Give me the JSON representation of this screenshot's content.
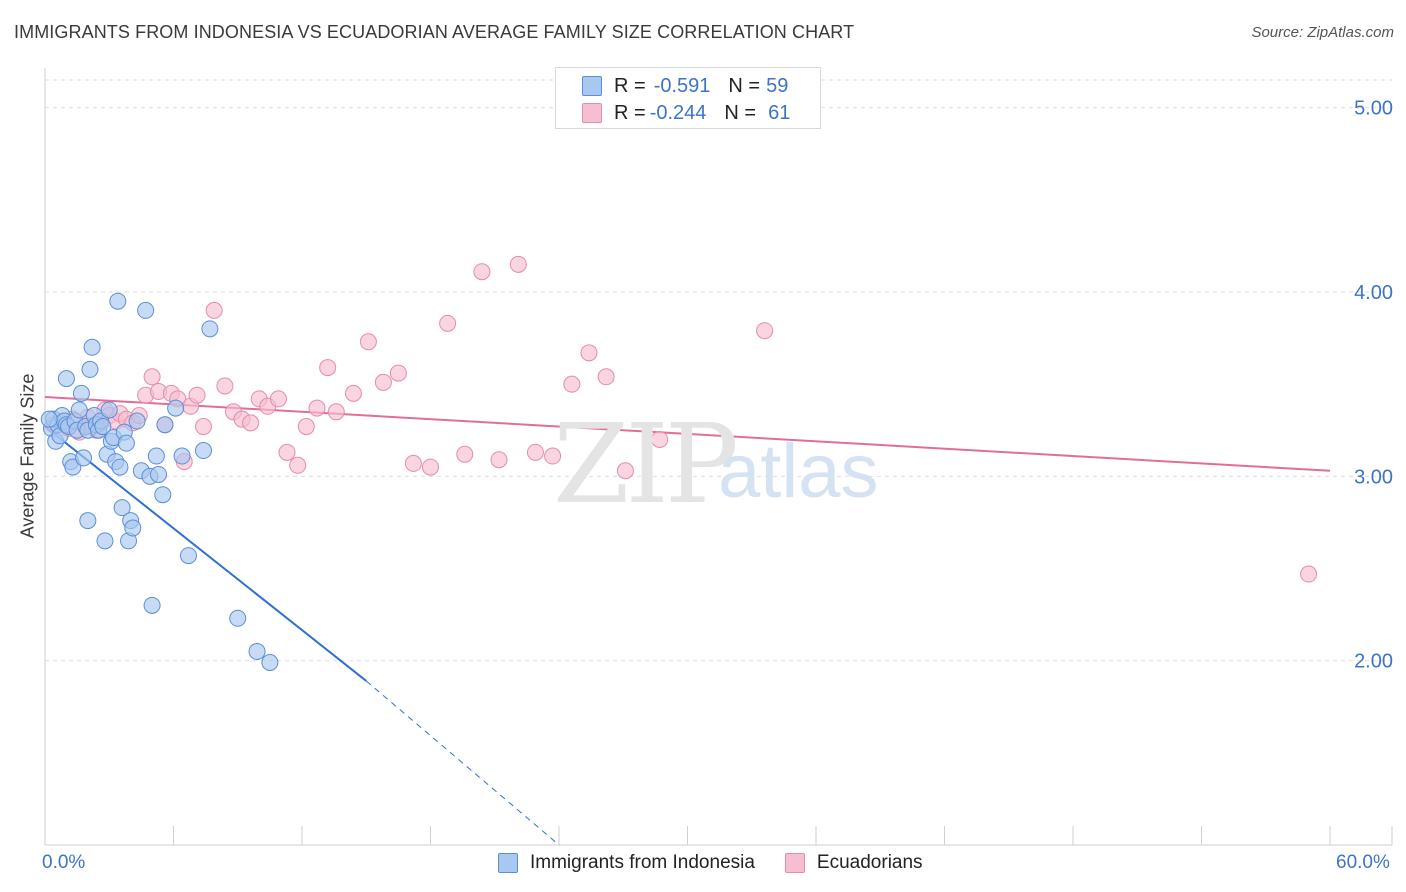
{
  "title": "IMMIGRANTS FROM INDONESIA VS ECUADORIAN AVERAGE FAMILY SIZE CORRELATION CHART",
  "source": "Source: ZipAtlas.com",
  "watermark": {
    "zip": "ZIP",
    "atlas": "atlas"
  },
  "legend": {
    "series1": {
      "r_label": "R = ",
      "r_value": "-0.591",
      "n_label": "N = ",
      "n_value": "59"
    },
    "series2": {
      "r_label": "R = ",
      "r_value": "-0.244",
      "n_label": "N = ",
      "n_value": "61"
    }
  },
  "bottom_legend": {
    "series1": "Immigrants from Indonesia",
    "series2": "Ecuadorians"
  },
  "colors": {
    "blue_fill": "#a9c8f0",
    "blue_stroke": "#5b8fd6",
    "blue_line": "#2f6fd1",
    "pink_fill": "#f6bfd1",
    "pink_stroke": "#e88aaa",
    "pink_line": "#e46d97",
    "grid": "#dedede",
    "tick_text": "#3d74c6"
  },
  "chart_data": {
    "type": "scatter",
    "title": "IMMIGRANTS FROM INDONESIA VS ECUADORIAN AVERAGE FAMILY SIZE CORRELATION CHART",
    "xlabel": "",
    "ylabel": "Average Family Size",
    "xlim": [
      0,
      60
    ],
    "ylim": [
      1.0,
      5.15
    ],
    "x_tick_labels": [
      "0.0%",
      "60.0%"
    ],
    "y_ticks": [
      2.0,
      3.0,
      4.0,
      5.0
    ],
    "y_tick_labels": [
      "2.00",
      "3.00",
      "4.00",
      "5.00"
    ],
    "series": [
      {
        "name": "Immigrants from Indonesia",
        "points": [
          [
            0.3,
            3.26
          ],
          [
            0.4,
            3.31
          ],
          [
            0.5,
            3.19
          ],
          [
            0.6,
            3.28
          ],
          [
            0.7,
            3.22
          ],
          [
            0.8,
            3.33
          ],
          [
            0.9,
            3.3
          ],
          [
            1.0,
            3.53
          ],
          [
            1.0,
            3.28
          ],
          [
            1.1,
            3.27
          ],
          [
            1.2,
            3.08
          ],
          [
            1.3,
            3.05
          ],
          [
            1.4,
            3.3
          ],
          [
            1.5,
            3.25
          ],
          [
            1.6,
            3.36
          ],
          [
            1.7,
            3.45
          ],
          [
            1.8,
            3.1
          ],
          [
            1.9,
            3.27
          ],
          [
            2.0,
            3.25
          ],
          [
            2.0,
            2.76
          ],
          [
            2.1,
            3.58
          ],
          [
            2.2,
            3.7
          ],
          [
            2.3,
            3.33
          ],
          [
            2.4,
            3.28
          ],
          [
            2.5,
            3.25
          ],
          [
            2.6,
            3.3
          ],
          [
            2.7,
            3.27
          ],
          [
            2.8,
            2.65
          ],
          [
            2.9,
            3.12
          ],
          [
            3.0,
            3.36
          ],
          [
            3.1,
            3.19
          ],
          [
            3.2,
            3.21
          ],
          [
            3.3,
            3.08
          ],
          [
            3.4,
            3.95
          ],
          [
            3.5,
            3.05
          ],
          [
            3.6,
            2.83
          ],
          [
            3.7,
            3.24
          ],
          [
            3.8,
            3.18
          ],
          [
            3.9,
            2.65
          ],
          [
            4.0,
            2.76
          ],
          [
            4.1,
            2.72
          ],
          [
            4.3,
            3.3
          ],
          [
            4.5,
            3.03
          ],
          [
            4.7,
            3.9
          ],
          [
            4.9,
            3.0
          ],
          [
            5.0,
            2.3
          ],
          [
            5.2,
            3.11
          ],
          [
            5.3,
            3.01
          ],
          [
            5.5,
            2.9
          ],
          [
            5.6,
            3.28
          ],
          [
            6.1,
            3.37
          ],
          [
            6.4,
            3.11
          ],
          [
            6.7,
            2.57
          ],
          [
            7.4,
            3.14
          ],
          [
            7.7,
            3.8
          ],
          [
            9.0,
            2.23
          ],
          [
            9.9,
            2.05
          ],
          [
            10.5,
            1.99
          ],
          [
            0.2,
            3.31
          ]
        ],
        "trend": {
          "x0": 0,
          "y0": 3.27,
          "x1": 15,
          "y1": 1.89,
          "dashed_to_x": 24,
          "dashed_to_y": 1.0
        }
      },
      {
        "name": "Ecuadorians",
        "points": [
          [
            0.4,
            3.28
          ],
          [
            0.8,
            3.29
          ],
          [
            1.1,
            3.26
          ],
          [
            1.3,
            3.31
          ],
          [
            1.6,
            3.24
          ],
          [
            1.9,
            3.28
          ],
          [
            2.0,
            3.32
          ],
          [
            2.2,
            3.27
          ],
          [
            2.4,
            3.25
          ],
          [
            2.6,
            3.29
          ],
          [
            2.8,
            3.36
          ],
          [
            3.0,
            3.33
          ],
          [
            3.3,
            3.3
          ],
          [
            3.5,
            3.34
          ],
          [
            3.8,
            3.31
          ],
          [
            4.1,
            3.29
          ],
          [
            4.4,
            3.33
          ],
          [
            4.7,
            3.44
          ],
          [
            5.0,
            3.54
          ],
          [
            5.3,
            3.46
          ],
          [
            5.6,
            3.28
          ],
          [
            5.9,
            3.45
          ],
          [
            6.2,
            3.42
          ],
          [
            6.5,
            3.08
          ],
          [
            6.8,
            3.38
          ],
          [
            7.1,
            3.44
          ],
          [
            7.4,
            3.27
          ],
          [
            7.9,
            3.9
          ],
          [
            8.4,
            3.49
          ],
          [
            8.8,
            3.35
          ],
          [
            9.2,
            3.31
          ],
          [
            9.6,
            3.29
          ],
          [
            10.0,
            3.42
          ],
          [
            10.4,
            3.38
          ],
          [
            10.9,
            3.42
          ],
          [
            11.3,
            3.13
          ],
          [
            11.8,
            3.06
          ],
          [
            12.2,
            3.27
          ],
          [
            12.7,
            3.37
          ],
          [
            13.2,
            3.59
          ],
          [
            13.6,
            3.35
          ],
          [
            14.4,
            3.45
          ],
          [
            15.1,
            3.73
          ],
          [
            15.8,
            3.51
          ],
          [
            16.5,
            3.56
          ],
          [
            17.2,
            3.07
          ],
          [
            18.0,
            3.05
          ],
          [
            18.8,
            3.83
          ],
          [
            19.6,
            3.12
          ],
          [
            20.4,
            4.11
          ],
          [
            21.2,
            3.09
          ],
          [
            22.1,
            4.15
          ],
          [
            22.9,
            3.13
          ],
          [
            23.7,
            3.11
          ],
          [
            24.6,
            3.5
          ],
          [
            25.4,
            3.67
          ],
          [
            26.2,
            3.54
          ],
          [
            27.1,
            3.03
          ],
          [
            28.7,
            3.2
          ],
          [
            33.6,
            3.79
          ],
          [
            59.0,
            2.47
          ]
        ],
        "trend": {
          "x0": 0,
          "y0": 3.43,
          "x1": 60,
          "y1": 3.03
        }
      }
    ]
  }
}
